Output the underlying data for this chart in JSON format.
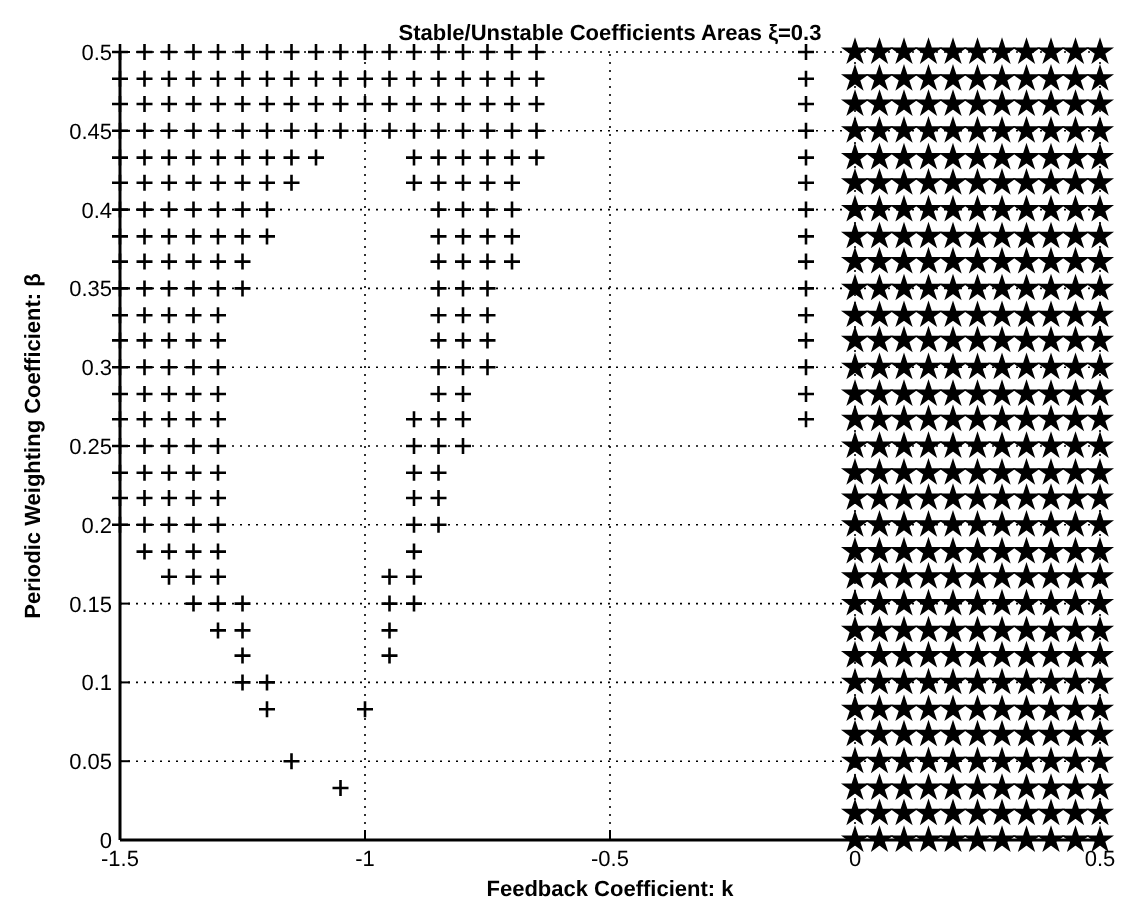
{
  "chart_data": {
    "type": "scatter",
    "title": "Stable/Unstable Coefficients Areas ξ=0.3",
    "xlabel": "Feedback Coefficient: k",
    "ylabel": "Periodic Weighting Coefficient: β",
    "xlim": [
      -1.5,
      0.5
    ],
    "ylim": [
      0,
      0.5
    ],
    "xticks": [
      -1.5,
      -1,
      -0.5,
      0,
      0.5
    ],
    "yticks": [
      0,
      0.05,
      0.1,
      0.15,
      0.2,
      0.25,
      0.3,
      0.35,
      0.4,
      0.45,
      0.5
    ],
    "grid": true,
    "series": [
      {
        "color": "#000000",
        "marker": "cross",
        "x": [
          -1.5,
          -1.45,
          -1.4,
          -1.35,
          -1.3,
          -1.25,
          -1.2,
          -1.15,
          -1.1,
          -1.05,
          -1,
          -0.95,
          -0.9,
          -0.85,
          -0.8,
          -0.75,
          -0.7,
          -0.65,
          -0.1,
          -1.5,
          -1.45,
          -1.4,
          -1.35,
          -1.3,
          -1.25,
          -1.2,
          -1.15,
          -1.1,
          -1.05,
          -1,
          -0.95,
          -0.9,
          -0.85,
          -0.8,
          -0.75,
          -0.7,
          -0.65,
          -0.1,
          -1.5,
          -1.45,
          -1.4,
          -1.35,
          -1.3,
          -1.25,
          -1.2,
          -1.15,
          -1.1,
          -1.05,
          -1,
          -0.95,
          -0.9,
          -0.85,
          -0.8,
          -0.75,
          -0.7,
          -0.65,
          -0.1,
          -1.5,
          -1.45,
          -1.4,
          -1.35,
          -1.3,
          -1.25,
          -1.2,
          -1.15,
          -1.1,
          -1.05,
          -1,
          -0.95,
          -0.9,
          -0.85,
          -0.8,
          -0.75,
          -0.7,
          -0.65,
          -0.1,
          -1.5,
          -1.45,
          -1.4,
          -1.35,
          -1.3,
          -1.25,
          -1.2,
          -1.15,
          -1.1,
          -0.9,
          -0.85,
          -0.8,
          -0.75,
          -0.7,
          -0.65,
          -0.1,
          -1.5,
          -1.45,
          -1.4,
          -1.35,
          -1.3,
          -1.25,
          -1.2,
          -1.15,
          -0.9,
          -0.85,
          -0.8,
          -0.75,
          -0.7,
          -0.1,
          -1.5,
          -1.45,
          -1.4,
          -1.35,
          -1.3,
          -1.25,
          -1.2,
          -0.85,
          -0.8,
          -0.75,
          -0.7,
          -0.1,
          -1.5,
          -1.45,
          -1.4,
          -1.35,
          -1.3,
          -1.25,
          -1.2,
          -0.85,
          -0.8,
          -0.75,
          -0.7,
          -0.1,
          -1.5,
          -1.45,
          -1.4,
          -1.35,
          -1.3,
          -1.25,
          -0.85,
          -0.8,
          -0.75,
          -0.7,
          -0.1,
          -1.5,
          -1.45,
          -1.4,
          -1.35,
          -1.3,
          -1.25,
          -0.85,
          -0.8,
          -0.75,
          -0.1,
          -1.5,
          -1.45,
          -1.4,
          -1.35,
          -1.3,
          -0.85,
          -0.8,
          -0.75,
          -0.1,
          -1.5,
          -1.45,
          -1.4,
          -1.35,
          -1.3,
          -0.85,
          -0.8,
          -0.75,
          -0.1,
          -1.5,
          -1.45,
          -1.4,
          -1.35,
          -1.3,
          -0.85,
          -0.8,
          -0.75,
          -0.1,
          -1.5,
          -1.45,
          -1.4,
          -1.35,
          -1.3,
          -0.85,
          -0.8,
          -0.1,
          -1.5,
          -1.45,
          -1.4,
          -1.35,
          -1.3,
          -0.9,
          -0.85,
          -0.8,
          -0.1,
          -1.5,
          -1.45,
          -1.4,
          -1.35,
          -1.3,
          -0.9,
          -0.85,
          -0.8,
          -1.5,
          -1.45,
          -1.4,
          -1.35,
          -1.3,
          -0.9,
          -0.85,
          -1.5,
          -1.45,
          -1.4,
          -1.35,
          -1.3,
          -0.9,
          -0.85,
          -1.5,
          -1.45,
          -1.4,
          -1.35,
          -1.3,
          -0.9,
          -0.85,
          -1.45,
          -1.4,
          -1.35,
          -1.3,
          -0.9,
          -1.4,
          -1.35,
          -1.3,
          -0.95,
          -0.9,
          -1.35,
          -1.3,
          -1.25,
          -0.95,
          -0.9,
          -1.3,
          -1.25,
          -0.95,
          -1.25,
          -0.95,
          -1.25,
          -1.2,
          -1.2,
          -1,
          -1.15,
          -1.05
        ],
        "values": [
          0.5,
          0.5,
          0.5,
          0.5,
          0.5,
          0.5,
          0.5,
          0.5,
          0.5,
          0.5,
          0.5,
          0.5,
          0.5,
          0.5,
          0.5,
          0.5,
          0.5,
          0.5,
          0.5,
          0.483,
          0.483,
          0.483,
          0.483,
          0.483,
          0.483,
          0.483,
          0.483,
          0.483,
          0.483,
          0.483,
          0.483,
          0.483,
          0.483,
          0.483,
          0.483,
          0.483,
          0.483,
          0.483,
          0.467,
          0.467,
          0.467,
          0.467,
          0.467,
          0.467,
          0.467,
          0.467,
          0.467,
          0.467,
          0.467,
          0.467,
          0.467,
          0.467,
          0.467,
          0.467,
          0.467,
          0.467,
          0.467,
          0.45,
          0.45,
          0.45,
          0.45,
          0.45,
          0.45,
          0.45,
          0.45,
          0.45,
          0.45,
          0.45,
          0.45,
          0.45,
          0.45,
          0.45,
          0.45,
          0.45,
          0.45,
          0.45,
          0.433,
          0.433,
          0.433,
          0.433,
          0.433,
          0.433,
          0.433,
          0.433,
          0.433,
          0.433,
          0.433,
          0.433,
          0.433,
          0.433,
          0.433,
          0.433,
          0.417,
          0.417,
          0.417,
          0.417,
          0.417,
          0.417,
          0.417,
          0.417,
          0.417,
          0.417,
          0.417,
          0.417,
          0.417,
          0.417,
          0.4,
          0.4,
          0.4,
          0.4,
          0.4,
          0.4,
          0.4,
          0.4,
          0.4,
          0.4,
          0.4,
          0.4,
          0.383,
          0.383,
          0.383,
          0.383,
          0.383,
          0.383,
          0.383,
          0.383,
          0.383,
          0.383,
          0.383,
          0.383,
          0.367,
          0.367,
          0.367,
          0.367,
          0.367,
          0.367,
          0.367,
          0.367,
          0.367,
          0.367,
          0.367,
          0.35,
          0.35,
          0.35,
          0.35,
          0.35,
          0.35,
          0.35,
          0.35,
          0.35,
          0.35,
          0.333,
          0.333,
          0.333,
          0.333,
          0.333,
          0.333,
          0.333,
          0.333,
          0.333,
          0.317,
          0.317,
          0.317,
          0.317,
          0.317,
          0.317,
          0.317,
          0.317,
          0.317,
          0.3,
          0.3,
          0.3,
          0.3,
          0.3,
          0.3,
          0.3,
          0.3,
          0.3,
          0.283,
          0.283,
          0.283,
          0.283,
          0.283,
          0.283,
          0.283,
          0.283,
          0.267,
          0.267,
          0.267,
          0.267,
          0.267,
          0.267,
          0.267,
          0.267,
          0.267,
          0.25,
          0.25,
          0.25,
          0.25,
          0.25,
          0.25,
          0.25,
          0.25,
          0.233,
          0.233,
          0.233,
          0.233,
          0.233,
          0.233,
          0.233,
          0.217,
          0.217,
          0.217,
          0.217,
          0.217,
          0.217,
          0.217,
          0.2,
          0.2,
          0.2,
          0.2,
          0.2,
          0.2,
          0.2,
          0.183,
          0.183,
          0.183,
          0.183,
          0.183,
          0.167,
          0.167,
          0.167,
          0.167,
          0.167,
          0.15,
          0.15,
          0.15,
          0.15,
          0.15,
          0.133,
          0.133,
          0.133,
          0.117,
          0.117,
          0.1,
          0.1,
          0.083,
          0.083,
          0.05,
          0.033
        ]
      },
      {
        "color": "#000000",
        "marker": "star",
        "x": [
          0,
          0.05,
          0.1,
          0.15,
          0.2,
          0.25,
          0.3,
          0.35,
          0.4,
          0.45,
          0.5,
          0,
          0.05,
          0.1,
          0.15,
          0.2,
          0.25,
          0.3,
          0.35,
          0.4,
          0.45,
          0.5,
          0,
          0.05,
          0.1,
          0.15,
          0.2,
          0.25,
          0.3,
          0.35,
          0.4,
          0.45,
          0.5,
          0,
          0.05,
          0.1,
          0.15,
          0.2,
          0.25,
          0.3,
          0.35,
          0.4,
          0.45,
          0.5,
          0,
          0.05,
          0.1,
          0.15,
          0.2,
          0.25,
          0.3,
          0.35,
          0.4,
          0.45,
          0.5,
          0,
          0.05,
          0.1,
          0.15,
          0.2,
          0.25,
          0.3,
          0.35,
          0.4,
          0.45,
          0.5,
          0,
          0.05,
          0.1,
          0.15,
          0.2,
          0.25,
          0.3,
          0.35,
          0.4,
          0.45,
          0.5,
          0,
          0.05,
          0.1,
          0.15,
          0.2,
          0.25,
          0.3,
          0.35,
          0.4,
          0.45,
          0.5,
          0,
          0.05,
          0.1,
          0.15,
          0.2,
          0.25,
          0.3,
          0.35,
          0.4,
          0.45,
          0.5,
          0,
          0.05,
          0.1,
          0.15,
          0.2,
          0.25,
          0.3,
          0.35,
          0.4,
          0.45,
          0.5,
          0,
          0.05,
          0.1,
          0.15,
          0.2,
          0.25,
          0.3,
          0.35,
          0.4,
          0.45,
          0.5,
          0,
          0.05,
          0.1,
          0.15,
          0.2,
          0.25,
          0.3,
          0.35,
          0.4,
          0.45,
          0.5,
          0,
          0.05,
          0.1,
          0.15,
          0.2,
          0.25,
          0.3,
          0.35,
          0.4,
          0.45,
          0.5,
          0,
          0.05,
          0.1,
          0.15,
          0.2,
          0.25,
          0.3,
          0.35,
          0.4,
          0.45,
          0.5,
          0,
          0.05,
          0.1,
          0.15,
          0.2,
          0.25,
          0.3,
          0.35,
          0.4,
          0.45,
          0.5,
          0,
          0.05,
          0.1,
          0.15,
          0.2,
          0.25,
          0.3,
          0.35,
          0.4,
          0.45,
          0.5,
          0,
          0.05,
          0.1,
          0.15,
          0.2,
          0.25,
          0.3,
          0.35,
          0.4,
          0.45,
          0.5,
          0,
          0.05,
          0.1,
          0.15,
          0.2,
          0.25,
          0.3,
          0.35,
          0.4,
          0.45,
          0.5,
          0,
          0.05,
          0.1,
          0.15,
          0.2,
          0.25,
          0.3,
          0.35,
          0.4,
          0.45,
          0.5,
          0,
          0.05,
          0.1,
          0.15,
          0.2,
          0.25,
          0.3,
          0.35,
          0.4,
          0.45,
          0.5,
          0,
          0.05,
          0.1,
          0.15,
          0.2,
          0.25,
          0.3,
          0.35,
          0.4,
          0.45,
          0.5,
          0,
          0.05,
          0.1,
          0.15,
          0.2,
          0.25,
          0.3,
          0.35,
          0.4,
          0.45,
          0.5,
          0,
          0.05,
          0.1,
          0.15,
          0.2,
          0.25,
          0.3,
          0.35,
          0.4,
          0.45,
          0.5,
          0,
          0.05,
          0.1,
          0.15,
          0.2,
          0.25,
          0.3,
          0.35,
          0.4,
          0.45,
          0.5,
          0,
          0.05,
          0.1,
          0.15,
          0.2,
          0.25,
          0.3,
          0.35,
          0.4,
          0.45,
          0.5,
          0,
          0.05,
          0.1,
          0.15,
          0.2,
          0.25,
          0.3,
          0.35,
          0.4,
          0.45,
          0.5,
          0,
          0.05,
          0.1,
          0.15,
          0.2,
          0.25,
          0.3,
          0.35,
          0.4,
          0.45,
          0.5,
          0,
          0.05,
          0.1,
          0.15,
          0.2,
          0.25,
          0.3,
          0.35,
          0.4,
          0.45,
          0.5,
          0,
          0.05,
          0.1,
          0.15,
          0.2,
          0.25,
          0.3,
          0.35,
          0.4,
          0.45,
          0.5,
          0,
          0.05,
          0.1,
          0.15,
          0.2,
          0.25,
          0.3,
          0.35,
          0.4,
          0.45,
          0.5,
          0,
          0.05,
          0.1,
          0.15,
          0.2,
          0.25,
          0.3,
          0.35,
          0.4,
          0.45,
          0.5
        ],
        "values": [
          0,
          0,
          0,
          0,
          0,
          0,
          0,
          0,
          0,
          0,
          0,
          0.017,
          0.017,
          0.017,
          0.017,
          0.017,
          0.017,
          0.017,
          0.017,
          0.017,
          0.017,
          0.017,
          0.033,
          0.033,
          0.033,
          0.033,
          0.033,
          0.033,
          0.033,
          0.033,
          0.033,
          0.033,
          0.033,
          0.05,
          0.05,
          0.05,
          0.05,
          0.05,
          0.05,
          0.05,
          0.05,
          0.05,
          0.05,
          0.05,
          0.067,
          0.067,
          0.067,
          0.067,
          0.067,
          0.067,
          0.067,
          0.067,
          0.067,
          0.067,
          0.067,
          0.083,
          0.083,
          0.083,
          0.083,
          0.083,
          0.083,
          0.083,
          0.083,
          0.083,
          0.083,
          0.083,
          0.1,
          0.1,
          0.1,
          0.1,
          0.1,
          0.1,
          0.1,
          0.1,
          0.1,
          0.1,
          0.1,
          0.117,
          0.117,
          0.117,
          0.117,
          0.117,
          0.117,
          0.117,
          0.117,
          0.117,
          0.117,
          0.117,
          0.133,
          0.133,
          0.133,
          0.133,
          0.133,
          0.133,
          0.133,
          0.133,
          0.133,
          0.133,
          0.133,
          0.15,
          0.15,
          0.15,
          0.15,
          0.15,
          0.15,
          0.15,
          0.15,
          0.15,
          0.15,
          0.15,
          0.167,
          0.167,
          0.167,
          0.167,
          0.167,
          0.167,
          0.167,
          0.167,
          0.167,
          0.167,
          0.167,
          0.183,
          0.183,
          0.183,
          0.183,
          0.183,
          0.183,
          0.183,
          0.183,
          0.183,
          0.183,
          0.183,
          0.2,
          0.2,
          0.2,
          0.2,
          0.2,
          0.2,
          0.2,
          0.2,
          0.2,
          0.2,
          0.2,
          0.217,
          0.217,
          0.217,
          0.217,
          0.217,
          0.217,
          0.217,
          0.217,
          0.217,
          0.217,
          0.217,
          0.233,
          0.233,
          0.233,
          0.233,
          0.233,
          0.233,
          0.233,
          0.233,
          0.233,
          0.233,
          0.233,
          0.25,
          0.25,
          0.25,
          0.25,
          0.25,
          0.25,
          0.25,
          0.25,
          0.25,
          0.25,
          0.25,
          0.267,
          0.267,
          0.267,
          0.267,
          0.267,
          0.267,
          0.267,
          0.267,
          0.267,
          0.267,
          0.267,
          0.283,
          0.283,
          0.283,
          0.283,
          0.283,
          0.283,
          0.283,
          0.283,
          0.283,
          0.283,
          0.283,
          0.3,
          0.3,
          0.3,
          0.3,
          0.3,
          0.3,
          0.3,
          0.3,
          0.3,
          0.3,
          0.3,
          0.317,
          0.317,
          0.317,
          0.317,
          0.317,
          0.317,
          0.317,
          0.317,
          0.317,
          0.317,
          0.317,
          0.333,
          0.333,
          0.333,
          0.333,
          0.333,
          0.333,
          0.333,
          0.333,
          0.333,
          0.333,
          0.333,
          0.35,
          0.35,
          0.35,
          0.35,
          0.35,
          0.35,
          0.35,
          0.35,
          0.35,
          0.35,
          0.35,
          0.367,
          0.367,
          0.367,
          0.367,
          0.367,
          0.367,
          0.367,
          0.367,
          0.367,
          0.367,
          0.367,
          0.383,
          0.383,
          0.383,
          0.383,
          0.383,
          0.383,
          0.383,
          0.383,
          0.383,
          0.383,
          0.383,
          0.4,
          0.4,
          0.4,
          0.4,
          0.4,
          0.4,
          0.4,
          0.4,
          0.4,
          0.4,
          0.4,
          0.417,
          0.417,
          0.417,
          0.417,
          0.417,
          0.417,
          0.417,
          0.417,
          0.417,
          0.417,
          0.417,
          0.433,
          0.433,
          0.433,
          0.433,
          0.433,
          0.433,
          0.433,
          0.433,
          0.433,
          0.433,
          0.433,
          0.45,
          0.45,
          0.45,
          0.45,
          0.45,
          0.45,
          0.45,
          0.45,
          0.45,
          0.45,
          0.45,
          0.467,
          0.467,
          0.467,
          0.467,
          0.467,
          0.467,
          0.467,
          0.467,
          0.467,
          0.467,
          0.467,
          0.483,
          0.483,
          0.483,
          0.483,
          0.483,
          0.483,
          0.483,
          0.483,
          0.483,
          0.483,
          0.483,
          0.5,
          0.5,
          0.5,
          0.5,
          0.5,
          0.5,
          0.5,
          0.5,
          0.5,
          0.5,
          0.5
        ]
      }
    ]
  }
}
